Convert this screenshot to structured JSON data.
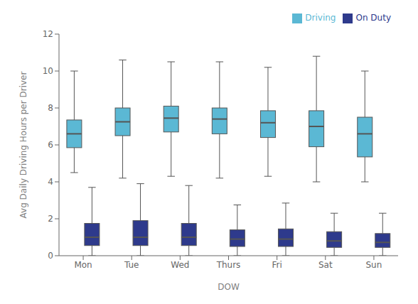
{
  "chart_data": {
    "type": "box",
    "xlabel": "DOW",
    "ylabel": "Avg Daily Driving Hours per Driver",
    "categories": [
      "Mon",
      "Tue",
      "Wed",
      "Thurs",
      "Fri",
      "Sat",
      "Sun"
    ],
    "series": [
      {
        "name": "Driving",
        "color": "#5BB8D4",
        "whislo": [
          4.5,
          4.2,
          4.3,
          4.2,
          4.3,
          4.0,
          4.0
        ],
        "q1": [
          5.85,
          6.5,
          6.7,
          6.6,
          6.4,
          5.9,
          5.35
        ],
        "med": [
          6.6,
          7.25,
          7.45,
          7.4,
          7.2,
          7.0,
          6.6
        ],
        "q3": [
          7.35,
          8.0,
          8.1,
          8.0,
          7.85,
          7.85,
          7.5
        ],
        "whishi": [
          10.0,
          10.6,
          10.5,
          10.5,
          10.2,
          10.8,
          10.0
        ]
      },
      {
        "name": "On Duty",
        "color": "#2E3A8C",
        "whislo": [
          0.0,
          0.0,
          0.0,
          0.0,
          0.0,
          0.0,
          0.0
        ],
        "q1": [
          0.55,
          0.55,
          0.55,
          0.5,
          0.5,
          0.45,
          0.45
        ],
        "med": [
          1.0,
          1.0,
          1.0,
          0.9,
          0.9,
          0.8,
          0.72
        ],
        "q3": [
          1.75,
          1.9,
          1.75,
          1.4,
          1.45,
          1.3,
          1.2
        ],
        "whishi": [
          3.7,
          3.9,
          3.8,
          2.75,
          2.85,
          2.3,
          2.3
        ]
      }
    ],
    "ylim": [
      0,
      12
    ],
    "yticks": [
      0,
      2,
      4,
      6,
      8,
      10,
      12
    ],
    "grid": false,
    "legend": "upper right"
  }
}
